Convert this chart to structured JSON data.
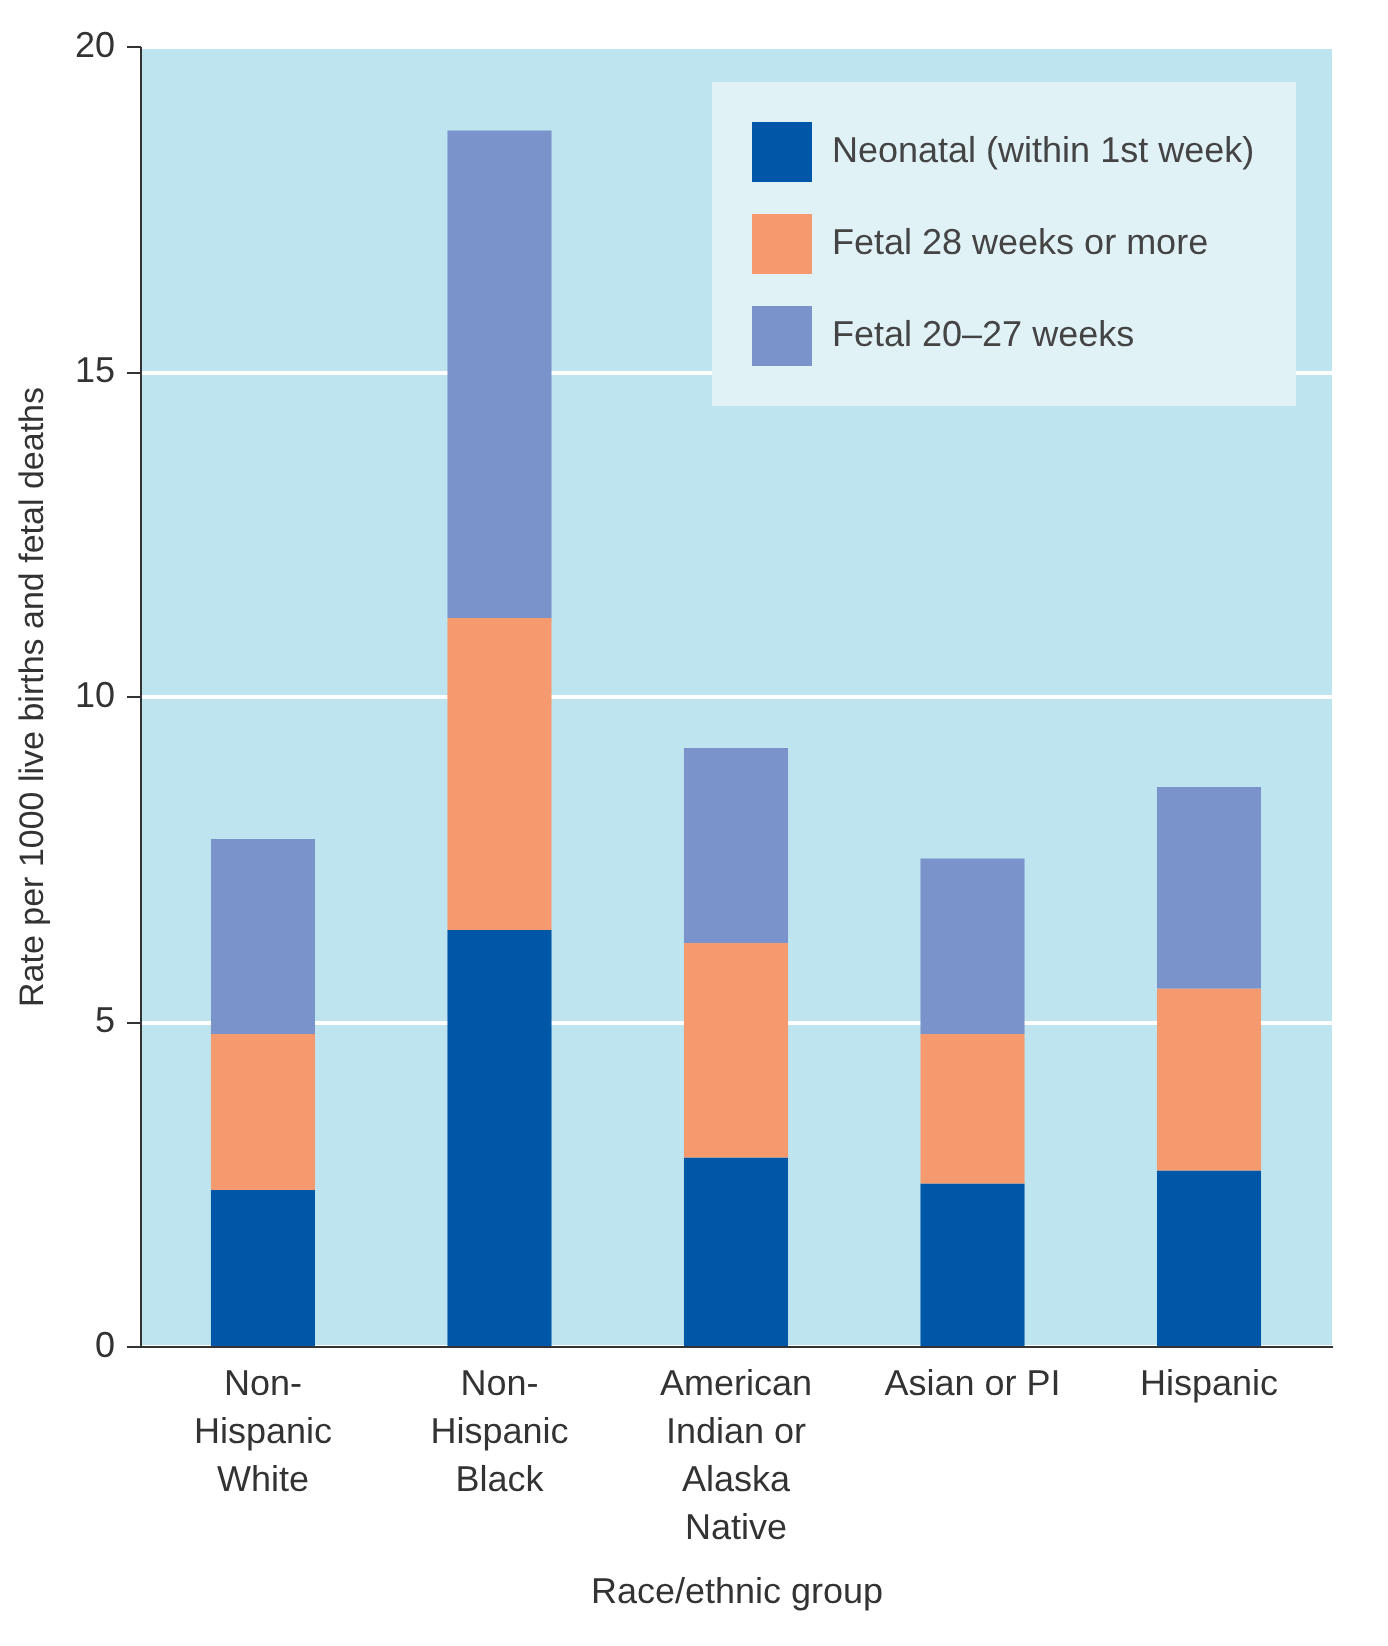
{
  "chart_data": {
    "type": "bar",
    "stacked": true,
    "categories": [
      "Non-Hispanic White",
      "Non-Hispanic Black",
      "American Indian or Alaska Native",
      "Asian or PI",
      "Hispanic"
    ],
    "series": [
      {
        "name": "Neonatal (within 1st week)",
        "color": "#0057a8",
        "values": [
          2.4,
          6.4,
          2.9,
          2.5,
          2.7
        ]
      },
      {
        "name": "Fetal 28 weeks or more",
        "color": "#f59a6e",
        "values": [
          2.4,
          4.8,
          3.3,
          2.3,
          2.8
        ]
      },
      {
        "name": "Fetal 20–27 weeks",
        "color": "#7b93cb",
        "values": [
          3.0,
          7.5,
          3.0,
          2.7,
          3.1
        ]
      }
    ],
    "xlabel": "Race/ethnic group",
    "ylabel": "Rate per 1000 live births and fetal deaths",
    "ylim": [
      0,
      20
    ],
    "yticks": [
      0,
      5,
      10,
      15,
      20
    ],
    "grid": "y",
    "legend": "top right"
  }
}
